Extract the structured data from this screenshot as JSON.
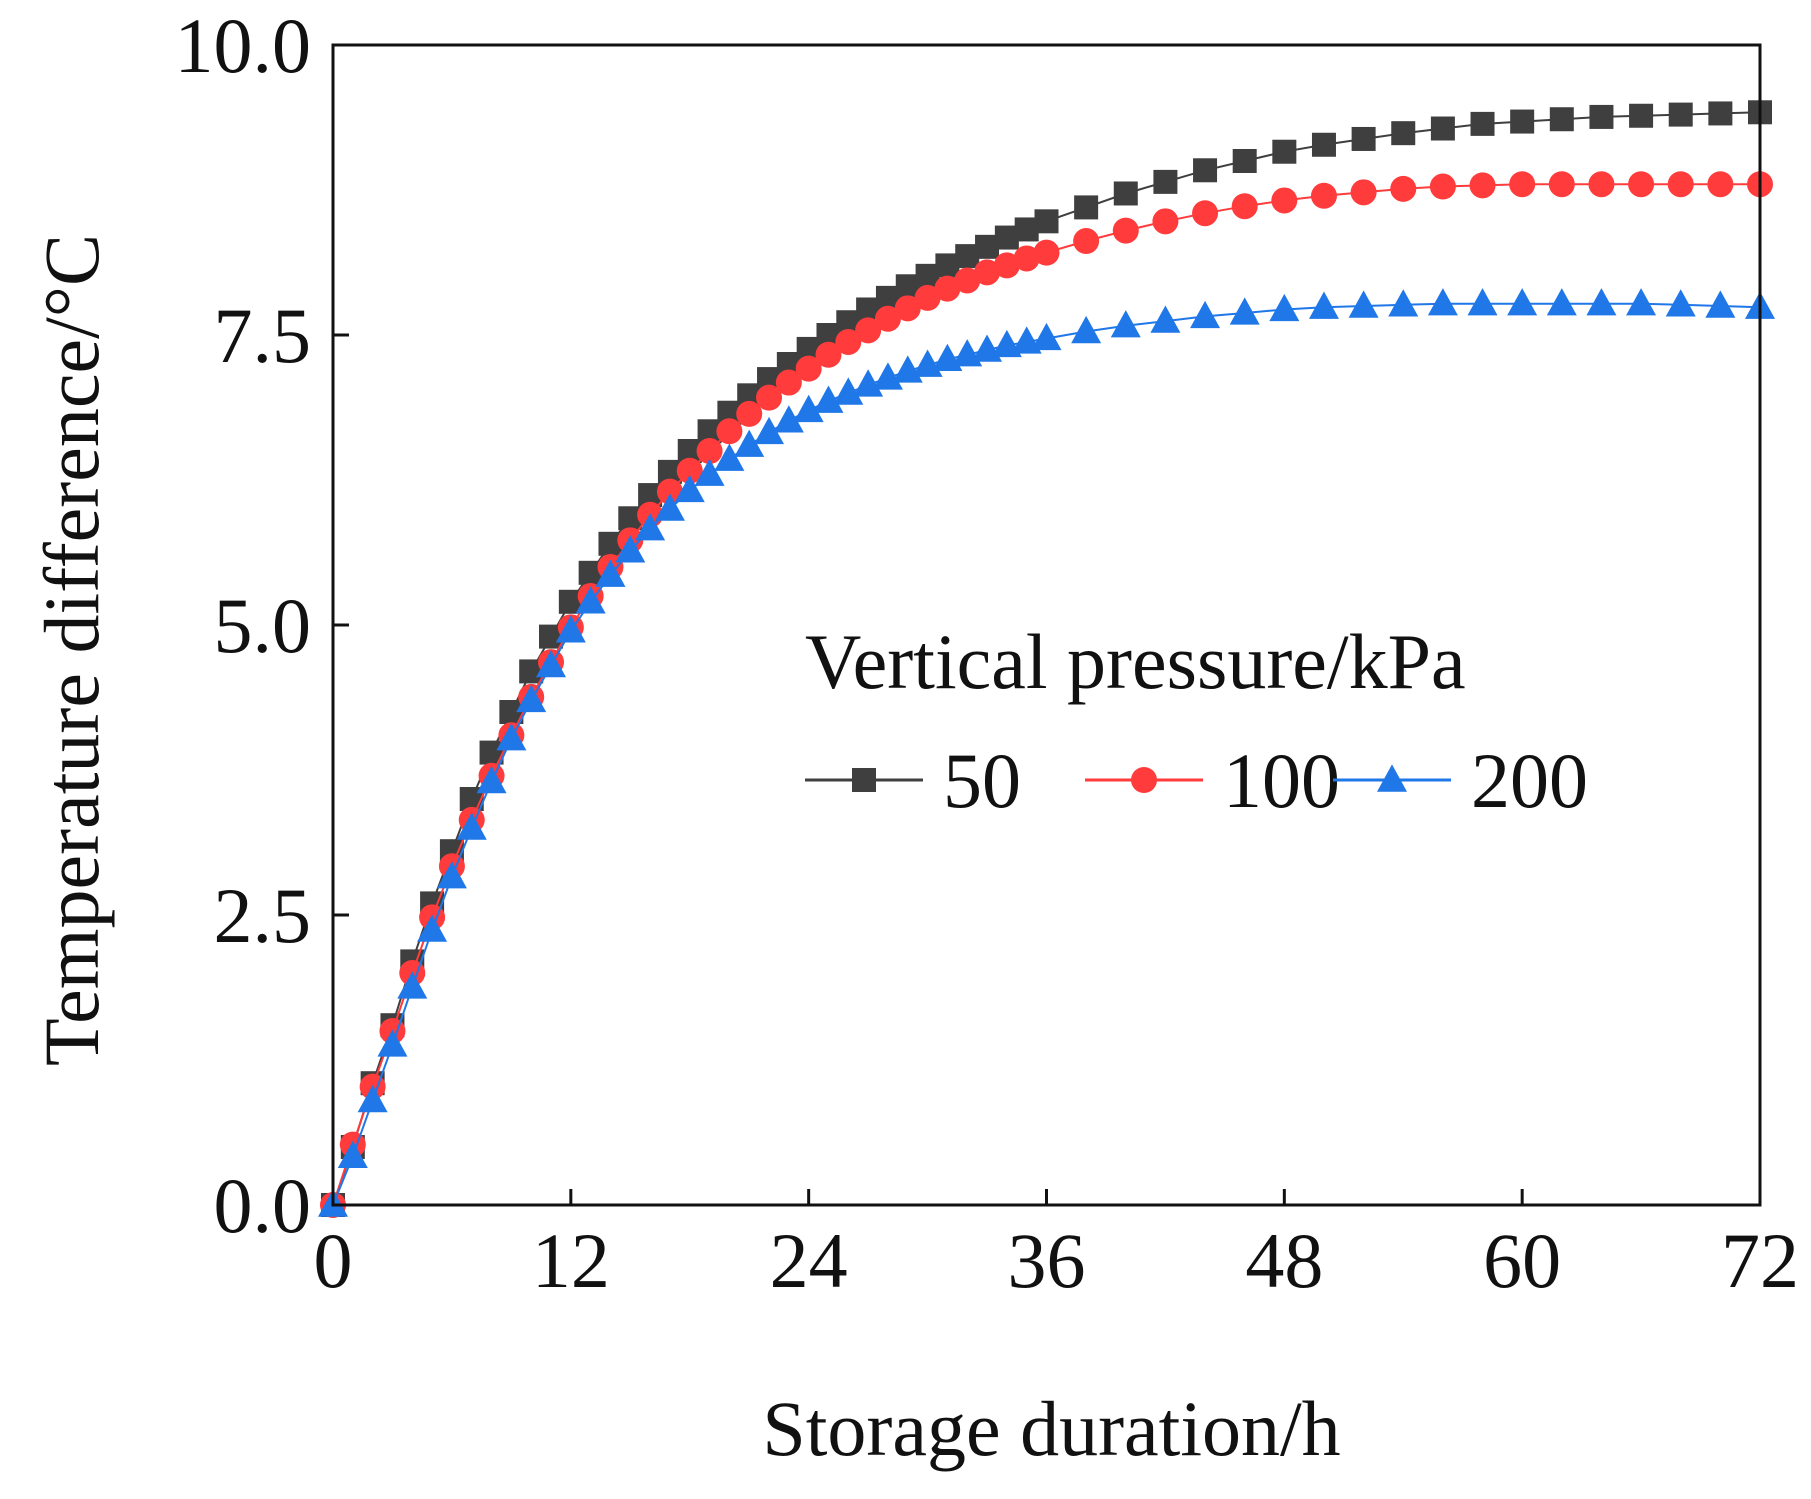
{
  "chart_data": {
    "type": "line",
    "title": "",
    "xlabel": "Storage duration/h",
    "ylabel": "Temperature difference/°C",
    "xlim": [
      0,
      72
    ],
    "ylim": [
      0,
      10
    ],
    "xticks": [
      0,
      12,
      24,
      36,
      48,
      60,
      72
    ],
    "xtick_labels": [
      "0",
      "12",
      "24",
      "36",
      "48",
      "60",
      "72"
    ],
    "yticks": [
      0,
      2.5,
      5,
      7.5,
      10
    ],
    "ytick_labels": [
      "0.0",
      "2.5",
      "5.0",
      "7.5",
      "10.0"
    ],
    "grid": false,
    "legend": {
      "title": "Vertical pressure/kPa",
      "position": "center-right"
    },
    "series": [
      {
        "name": "50",
        "color": "#3f3f3f",
        "marker": "square",
        "points": [
          [
            0,
            0
          ],
          [
            1,
            0.5
          ],
          [
            2,
            1.05
          ],
          [
            3,
            1.55
          ],
          [
            4,
            2.1
          ],
          [
            5,
            2.6
          ],
          [
            6,
            3.05
          ],
          [
            7,
            3.5
          ],
          [
            8,
            3.9
          ],
          [
            9,
            4.25
          ],
          [
            10,
            4.6
          ],
          [
            11,
            4.9
          ],
          [
            12,
            5.2
          ],
          [
            13,
            5.45
          ],
          [
            14,
            5.7
          ],
          [
            15,
            5.92
          ],
          [
            16,
            6.12
          ],
          [
            17,
            6.32
          ],
          [
            18,
            6.5
          ],
          [
            19,
            6.67
          ],
          [
            20,
            6.83
          ],
          [
            21,
            6.98
          ],
          [
            22,
            7.12
          ],
          [
            23,
            7.25
          ],
          [
            24,
            7.38
          ],
          [
            25,
            7.5
          ],
          [
            26,
            7.61
          ],
          [
            27,
            7.72
          ],
          [
            28,
            7.82
          ],
          [
            29,
            7.92
          ],
          [
            30,
            8.01
          ],
          [
            31,
            8.1
          ],
          [
            32,
            8.18
          ],
          [
            33,
            8.26
          ],
          [
            34,
            8.34
          ],
          [
            35,
            8.41
          ],
          [
            36,
            8.48
          ],
          [
            38,
            8.6
          ],
          [
            40,
            8.72
          ],
          [
            42,
            8.82
          ],
          [
            44,
            8.92
          ],
          [
            46,
            9.0
          ],
          [
            48,
            9.08
          ],
          [
            50,
            9.14
          ],
          [
            52,
            9.19
          ],
          [
            54,
            9.24
          ],
          [
            56,
            9.28
          ],
          [
            58,
            9.32
          ],
          [
            60,
            9.34
          ],
          [
            62,
            9.36
          ],
          [
            64,
            9.38
          ],
          [
            66,
            9.39
          ],
          [
            68,
            9.4
          ],
          [
            70,
            9.41
          ],
          [
            72,
            9.42
          ]
        ]
      },
      {
        "name": "100",
        "color": "#ff3b3b",
        "marker": "circle",
        "points": [
          [
            0,
            0
          ],
          [
            1,
            0.52
          ],
          [
            2,
            1.02
          ],
          [
            3,
            1.5
          ],
          [
            4,
            2.0
          ],
          [
            5,
            2.48
          ],
          [
            6,
            2.92
          ],
          [
            7,
            3.32
          ],
          [
            8,
            3.7
          ],
          [
            9,
            4.05
          ],
          [
            10,
            4.38
          ],
          [
            11,
            4.68
          ],
          [
            12,
            4.98
          ],
          [
            13,
            5.25
          ],
          [
            14,
            5.5
          ],
          [
            15,
            5.73
          ],
          [
            16,
            5.95
          ],
          [
            17,
            6.15
          ],
          [
            18,
            6.33
          ],
          [
            19,
            6.5
          ],
          [
            20,
            6.67
          ],
          [
            21,
            6.82
          ],
          [
            22,
            6.96
          ],
          [
            23,
            7.09
          ],
          [
            24,
            7.21
          ],
          [
            25,
            7.33
          ],
          [
            26,
            7.44
          ],
          [
            27,
            7.54
          ],
          [
            28,
            7.64
          ],
          [
            29,
            7.73
          ],
          [
            30,
            7.82
          ],
          [
            31,
            7.9
          ],
          [
            32,
            7.97
          ],
          [
            33,
            8.04
          ],
          [
            34,
            8.1
          ],
          [
            35,
            8.16
          ],
          [
            36,
            8.21
          ],
          [
            38,
            8.31
          ],
          [
            40,
            8.4
          ],
          [
            42,
            8.48
          ],
          [
            44,
            8.55
          ],
          [
            46,
            8.61
          ],
          [
            48,
            8.66
          ],
          [
            50,
            8.7
          ],
          [
            52,
            8.73
          ],
          [
            54,
            8.76
          ],
          [
            56,
            8.78
          ],
          [
            58,
            8.79
          ],
          [
            60,
            8.8
          ],
          [
            62,
            8.8
          ],
          [
            64,
            8.8
          ],
          [
            66,
            8.8
          ],
          [
            68,
            8.8
          ],
          [
            70,
            8.8
          ],
          [
            72,
            8.8
          ]
        ]
      },
      {
        "name": "200",
        "color": "#1f77e8",
        "marker": "triangle",
        "points": [
          [
            0,
            0
          ],
          [
            1,
            0.42
          ],
          [
            2,
            0.9
          ],
          [
            3,
            1.38
          ],
          [
            4,
            1.88
          ],
          [
            5,
            2.37
          ],
          [
            6,
            2.83
          ],
          [
            7,
            3.25
          ],
          [
            8,
            3.65
          ],
          [
            9,
            4.02
          ],
          [
            10,
            4.35
          ],
          [
            11,
            4.65
          ],
          [
            12,
            4.95
          ],
          [
            13,
            5.2
          ],
          [
            14,
            5.43
          ],
          [
            15,
            5.64
          ],
          [
            16,
            5.83
          ],
          [
            17,
            6.0
          ],
          [
            18,
            6.16
          ],
          [
            19,
            6.3
          ],
          [
            20,
            6.43
          ],
          [
            21,
            6.55
          ],
          [
            22,
            6.66
          ],
          [
            23,
            6.76
          ],
          [
            24,
            6.85
          ],
          [
            25,
            6.93
          ],
          [
            26,
            7.0
          ],
          [
            27,
            7.07
          ],
          [
            28,
            7.13
          ],
          [
            29,
            7.19
          ],
          [
            30,
            7.24
          ],
          [
            31,
            7.29
          ],
          [
            32,
            7.33
          ],
          [
            33,
            7.37
          ],
          [
            34,
            7.41
          ],
          [
            35,
            7.44
          ],
          [
            36,
            7.47
          ],
          [
            38,
            7.53
          ],
          [
            40,
            7.58
          ],
          [
            42,
            7.62
          ],
          [
            44,
            7.66
          ],
          [
            46,
            7.69
          ],
          [
            48,
            7.72
          ],
          [
            50,
            7.74
          ],
          [
            52,
            7.75
          ],
          [
            54,
            7.76
          ],
          [
            56,
            7.77
          ],
          [
            58,
            7.77
          ],
          [
            60,
            7.77
          ],
          [
            62,
            7.77
          ],
          [
            64,
            7.77
          ],
          [
            66,
            7.77
          ],
          [
            68,
            7.76
          ],
          [
            70,
            7.75
          ],
          [
            72,
            7.74
          ]
        ]
      }
    ]
  }
}
